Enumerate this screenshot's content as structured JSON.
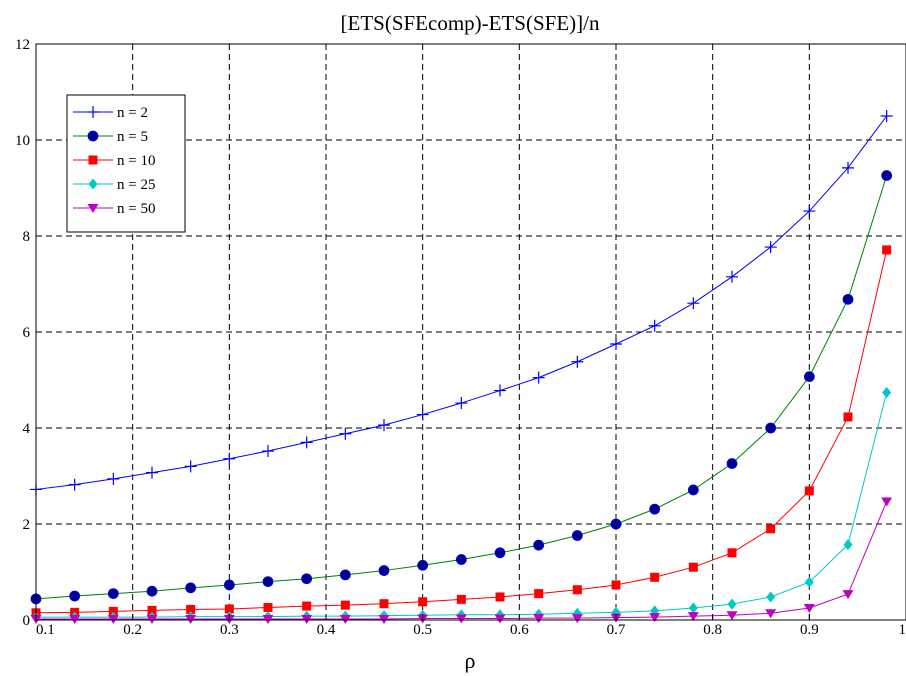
{
  "chart_data": {
    "type": "line",
    "title": "[ETS(SFEcomp)-ETS(SFE)]/n",
    "xlabel": "ρ",
    "ylabel": "",
    "xlim": [
      0.1,
      1
    ],
    "ylim": [
      0,
      12
    ],
    "xticks": [
      "0.1",
      "0.2",
      "0.3",
      "0.4",
      "0.5",
      "0.6",
      "0.7",
      "0.8",
      "0.9",
      "1"
    ],
    "yticks": [
      "0",
      "2",
      "4",
      "6",
      "8",
      "10",
      "12"
    ],
    "grid": true,
    "legend_position": "top-left",
    "x": [
      0.1,
      0.14,
      0.18,
      0.22,
      0.26,
      0.3,
      0.34,
      0.38,
      0.42,
      0.46,
      0.5,
      0.54,
      0.58,
      0.62,
      0.66,
      0.7,
      0.74,
      0.78,
      0.82,
      0.86,
      0.9,
      0.94,
      0.98
    ],
    "series": [
      {
        "name": "n = 2",
        "color": "#0000ff",
        "marker": "plus",
        "values": [
          2.72,
          2.82,
          2.94,
          3.07,
          3.2,
          3.36,
          3.52,
          3.7,
          3.88,
          4.06,
          4.28,
          4.52,
          4.78,
          5.05,
          5.38,
          5.75,
          6.13,
          6.6,
          7.15,
          7.77,
          8.52,
          9.42,
          10.5
        ]
      },
      {
        "name": "n = 5",
        "color": "#00008b",
        "marker": "circle",
        "values": [
          0.44,
          0.5,
          0.55,
          0.6,
          0.67,
          0.73,
          0.8,
          0.86,
          0.94,
          1.03,
          1.14,
          1.26,
          1.4,
          1.56,
          1.76,
          2.0,
          2.31,
          2.71,
          3.26,
          4.0,
          5.07,
          6.68,
          9.26
        ]
      },
      {
        "name": "n = 10",
        "color": "#ff0000",
        "marker": "square",
        "values": [
          0.15,
          0.16,
          0.18,
          0.2,
          0.22,
          0.23,
          0.26,
          0.29,
          0.31,
          0.34,
          0.38,
          0.43,
          0.48,
          0.55,
          0.63,
          0.73,
          0.89,
          1.1,
          1.4,
          1.9,
          2.69,
          4.23,
          7.71
        ]
      },
      {
        "name": "n = 25",
        "color": "#00c8c8",
        "marker": "diamond",
        "values": [
          0.06,
          0.06,
          0.06,
          0.06,
          0.07,
          0.07,
          0.07,
          0.08,
          0.08,
          0.09,
          0.1,
          0.11,
          0.11,
          0.12,
          0.14,
          0.16,
          0.19,
          0.25,
          0.33,
          0.48,
          0.79,
          1.57,
          4.74
        ]
      },
      {
        "name": "n = 50",
        "color": "#c000c0",
        "marker": "triangle-down",
        "values": [
          0.02,
          0.02,
          0.02,
          0.02,
          0.02,
          0.02,
          0.02,
          0.02,
          0.02,
          0.02,
          0.03,
          0.03,
          0.03,
          0.04,
          0.04,
          0.05,
          0.06,
          0.08,
          0.1,
          0.14,
          0.25,
          0.54,
          2.47
        ]
      }
    ]
  }
}
